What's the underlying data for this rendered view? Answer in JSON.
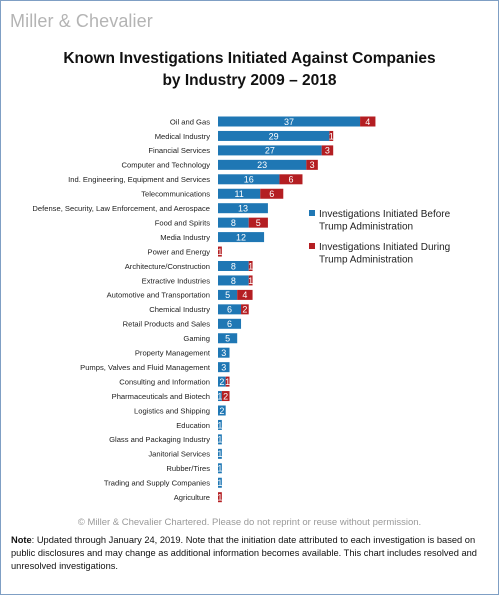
{
  "logo": "Miller & Chevalier",
  "title_line1": "Known Investigations Initiated Against Companies",
  "title_line2": "by Industry 2009 – 2018",
  "copyright": "© Miller & Chevalier Chartered. Please do not reprint or reuse without permission.",
  "note_label": "Note",
  "note_text": ": Updated through January 24, 2019. Note that the initiation date attributed to each investigation is based on public disclosures and may change as additional information becomes available.  This chart includes resolved and unresolved investigations.",
  "colors": {
    "before": "#1f77b4",
    "during": "#b41e22"
  },
  "chart_data": {
    "type": "bar",
    "orientation": "horizontal",
    "stacked": true,
    "title": "Known Investigations Initiated Against Companies by Industry 2009 – 2018",
    "xlabel": "",
    "ylabel": "",
    "legend_position": "right",
    "grid": false,
    "categories": [
      "Oil and Gas",
      "Medical Industry",
      "Financial Services",
      "Computer and Technology",
      "Ind. Engineering, Equipment and Services",
      "Telecommunications",
      "Defense, Security, Law Enforcement, and Aerospace",
      "Food and Spirits",
      "Media Industry",
      "Power and Energy",
      "Architecture/Construction",
      "Extractive Industries",
      "Automotive and Transportation",
      "Chemical Industry",
      "Retail Products and Sales",
      "Gaming",
      "Property Management",
      "Pumps, Valves and Fluid Management",
      "Consulting and Information",
      "Pharmaceuticals and Biotech",
      "Logistics and Shipping",
      "Education",
      "Glass and Packaging Industry",
      "Janitorial Services",
      "Rubber/Tires",
      "Trading and Supply Companies",
      "Agriculture"
    ],
    "series": [
      {
        "name": "Investigations Initiated Before Trump Administration",
        "values": [
          37,
          29,
          27,
          23,
          16,
          11,
          13,
          8,
          12,
          0,
          8,
          8,
          5,
          6,
          6,
          5,
          3,
          3,
          2,
          1,
          2,
          1,
          1,
          1,
          1,
          1,
          0
        ]
      },
      {
        "name": "Investigations Initiated During Trump Administration",
        "values": [
          4,
          1,
          3,
          3,
          6,
          6,
          0,
          5,
          0,
          1,
          1,
          1,
          4,
          2,
          0,
          0,
          0,
          0,
          1,
          2,
          0,
          0,
          0,
          0,
          0,
          0,
          1
        ]
      }
    ]
  }
}
